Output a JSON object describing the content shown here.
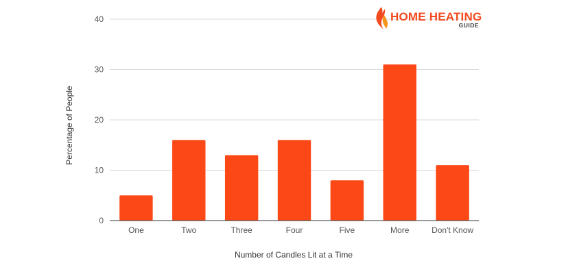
{
  "colors": {
    "bar": "#FC4716",
    "logo_red": "#F24A1E",
    "logo_orange": "#F7941D",
    "logo_text": "#3A3A3A"
  },
  "logo": {
    "main": "HOME HEATING",
    "sub": "GUIDE"
  },
  "chart_data": {
    "type": "bar",
    "title": "",
    "xlabel": "Number of Candles Lit at a Time",
    "ylabel": "Percentage of People",
    "categories": [
      "One",
      "Two",
      "Three",
      "Four",
      "Five",
      "More",
      "Don't Know"
    ],
    "values": [
      5,
      16,
      13,
      16,
      8,
      31,
      11
    ],
    "ylim": [
      0,
      40
    ],
    "yticks": [
      0,
      10,
      20,
      30,
      40
    ],
    "grid": true,
    "legend": "none"
  }
}
